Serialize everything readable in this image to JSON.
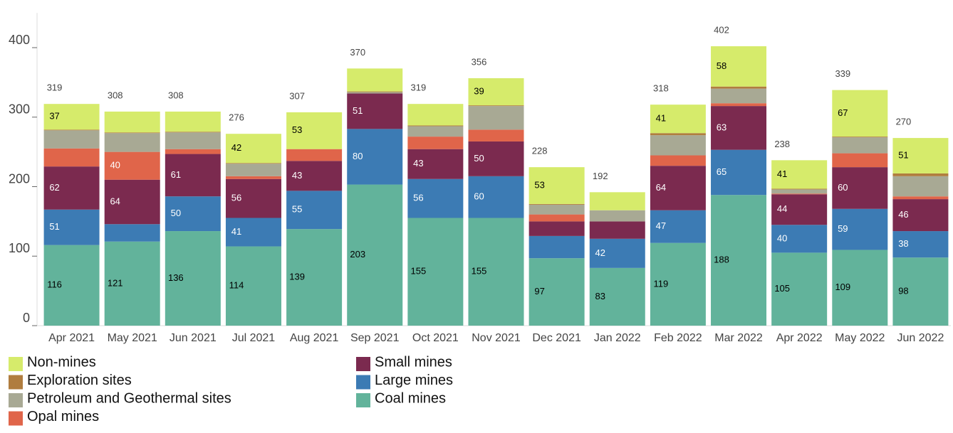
{
  "chart_data": {
    "type": "stacked_bar",
    "categories": [
      "Apr 2021",
      "May 2021",
      "Jun 2021",
      "Jul 2021",
      "Aug 2021",
      "Sep 2021",
      "Oct 2021",
      "Nov 2021",
      "Dec 2021",
      "Jan 2022",
      "Feb 2022",
      "Mar 2022",
      "Apr 2022",
      "May 2022",
      "Jun 2022"
    ],
    "series": [
      {
        "name": "Coal mines",
        "color": "#62b39b",
        "label_color": "#000000",
        "values": [
          116,
          121,
          136,
          114,
          139,
          203,
          155,
          155,
          97,
          83,
          119,
          188,
          105,
          109,
          98
        ],
        "value_labels": [
          "116",
          "121",
          "136",
          "114",
          "139",
          "203",
          "155",
          "155",
          "97",
          "83",
          "119",
          "188",
          "105",
          "109",
          "98"
        ]
      },
      {
        "name": "Large mines",
        "color": "#3c7bb4",
        "label_color": "#ffffff",
        "values": [
          51,
          25,
          50,
          41,
          55,
          80,
          56,
          60,
          32,
          42,
          47,
          65,
          40,
          59,
          38
        ],
        "value_labels": [
          "51",
          null,
          "50",
          "41",
          "55",
          "80",
          "56",
          "60",
          null,
          "42",
          "47",
          "65",
          "40",
          "59",
          "38"
        ]
      },
      {
        "name": "Small mines",
        "color": "#7b2a4f",
        "label_color": "#ffffff",
        "values": [
          62,
          64,
          61,
          56,
          43,
          51,
          43,
          50,
          21,
          25,
          64,
          63,
          44,
          60,
          46
        ],
        "value_labels": [
          "62",
          "64",
          "61",
          "56",
          "43",
          "51",
          "43",
          "50",
          null,
          null,
          "64",
          "63",
          "44",
          "60",
          "46"
        ]
      },
      {
        "name": "Opal mines",
        "color": "#e0654a",
        "label_color": "#ffffff",
        "values": [
          26,
          40,
          7,
          4,
          17,
          0,
          18,
          17,
          10,
          0,
          15,
          4,
          1,
          20,
          4
        ],
        "value_labels": [
          null,
          "40",
          null,
          null,
          null,
          null,
          null,
          null,
          null,
          null,
          null,
          null,
          null,
          null,
          null
        ]
      },
      {
        "name": "Petroleum and Geothermal sites",
        "color": "#a8a994",
        "label_color": "#000000",
        "values": [
          26,
          27,
          24,
          18,
          0,
          2,
          15,
          34,
          14,
          16,
          29,
          21,
          6,
          23,
          29
        ],
        "value_labels": [
          null,
          null,
          null,
          null,
          null,
          null,
          null,
          null,
          null,
          null,
          null,
          null,
          null,
          null,
          null
        ]
      },
      {
        "name": "Exploration sites",
        "color": "#b07d3f",
        "label_color": "#000000",
        "values": [
          1,
          1,
          1,
          1,
          0,
          1,
          1,
          1,
          1,
          0,
          3,
          3,
          1,
          1,
          4
        ],
        "value_labels": [
          null,
          null,
          null,
          null,
          null,
          null,
          null,
          null,
          null,
          null,
          null,
          null,
          null,
          null,
          null
        ]
      },
      {
        "name": "Non-mines",
        "color": "#d6eb6b",
        "label_color": "#000000",
        "values": [
          37,
          30,
          29,
          42,
          53,
          33,
          31,
          39,
          53,
          26,
          41,
          58,
          41,
          67,
          51
        ],
        "value_labels": [
          "37",
          null,
          null,
          "42",
          "53",
          null,
          null,
          "39",
          "53",
          null,
          "41",
          "58",
          "41",
          "67",
          "51"
        ]
      }
    ],
    "totals": [
      319,
      308,
      308,
      276,
      307,
      370,
      319,
      356,
      228,
      192,
      318,
      402,
      238,
      339,
      270
    ],
    "ylim": [
      0,
      450
    ],
    "yticks": [
      0,
      100,
      200,
      300,
      400
    ],
    "grid": false,
    "legend": "bottom-left"
  }
}
